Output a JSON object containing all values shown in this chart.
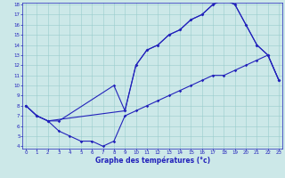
{
  "xlabel": "Graphe des températures (°c)",
  "xlim": [
    0,
    23
  ],
  "ylim": [
    4,
    18
  ],
  "yticks": [
    4,
    5,
    6,
    7,
    8,
    9,
    10,
    11,
    12,
    13,
    14,
    15,
    16,
    17,
    18
  ],
  "xticks": [
    0,
    1,
    2,
    3,
    4,
    5,
    6,
    7,
    8,
    9,
    10,
    11,
    12,
    13,
    14,
    15,
    16,
    17,
    18,
    19,
    20,
    21,
    22,
    23
  ],
  "line_color": "#2222bb",
  "bg_color": "#cce8e8",
  "grid_color": "#99cccc",
  "curve_top": {
    "x": [
      0,
      1,
      2,
      9,
      10,
      11,
      12,
      13,
      14,
      15,
      16,
      17,
      18,
      19,
      20,
      21,
      22,
      23
    ],
    "y": [
      8,
      7,
      6.5,
      7.5,
      12,
      13.5,
      14,
      15,
      15.5,
      16.5,
      17,
      18,
      18.5,
      18,
      16,
      14,
      13,
      10.5
    ]
  },
  "curve_mid": {
    "x": [
      0,
      1,
      2,
      3,
      8,
      9,
      10,
      11,
      12,
      13,
      14,
      15,
      16,
      17,
      18,
      19,
      20,
      21,
      22,
      23
    ],
    "y": [
      8,
      7,
      6.5,
      6.5,
      10,
      7.5,
      12,
      13.5,
      14,
      15,
      15.5,
      16.5,
      17,
      18,
      18.5,
      18,
      16,
      14,
      13,
      10.5
    ]
  },
  "curve_bot": {
    "x": [
      0,
      1,
      2,
      3,
      4,
      5,
      6,
      7,
      8,
      9,
      10,
      11,
      12,
      13,
      14,
      15,
      16,
      17,
      18,
      19,
      20,
      21,
      22,
      23
    ],
    "y": [
      8,
      7,
      6.5,
      5.5,
      5,
      4.5,
      4.5,
      4,
      4.5,
      7,
      7.5,
      8,
      8.5,
      9,
      9.5,
      10,
      10.5,
      11,
      11,
      11.5,
      12,
      12.5,
      13,
      10.5
    ]
  }
}
